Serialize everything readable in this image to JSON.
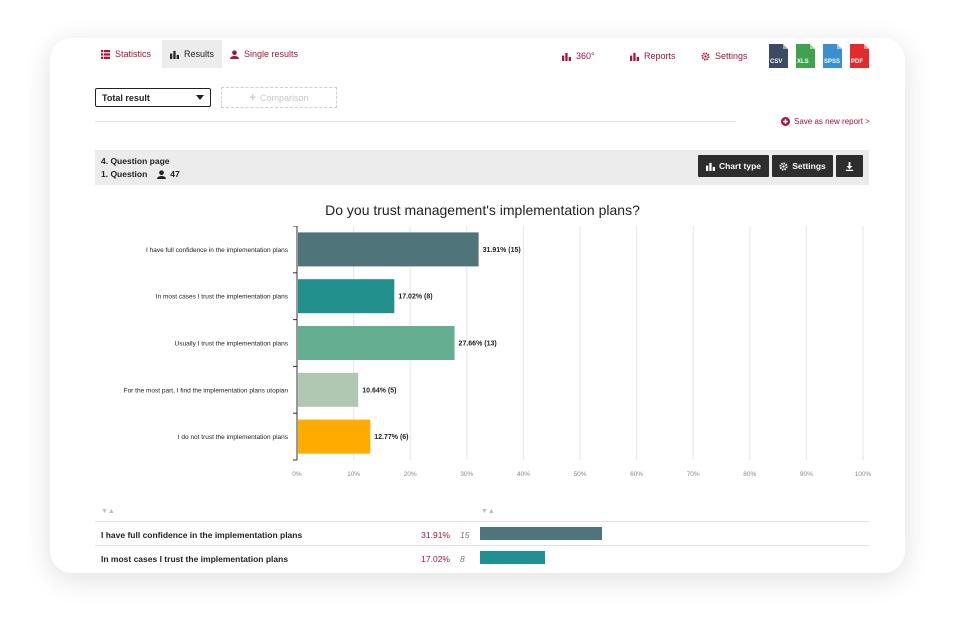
{
  "nav": {
    "tabs": [
      {
        "label": "Statistics",
        "icon": "table-icon"
      },
      {
        "label": "Results",
        "icon": "bar-chart-icon"
      },
      {
        "label": "Single results",
        "icon": "user-icon"
      }
    ],
    "links": [
      {
        "label": "360°",
        "icon": "bar-chart-icon"
      },
      {
        "label": "Reports",
        "icon": "bar-chart-icon"
      },
      {
        "label": "Settings",
        "icon": "gear-icon"
      }
    ],
    "exports": [
      {
        "label": "CSV",
        "color": "#3c4a63"
      },
      {
        "label": "XLS",
        "color": "#3fa34d"
      },
      {
        "label": "SPSS",
        "color": "#3b8fd1"
      },
      {
        "label": "PDF",
        "color": "#e32b2b"
      }
    ]
  },
  "filters": {
    "select_value": "Total result",
    "comparison_label": "Comparison",
    "save_label": "Save as new report >"
  },
  "question": {
    "page_label": "4. Question page",
    "question_label": "1. Question",
    "respondents": "47",
    "chart_type_label": "Chart type",
    "settings_label": "Settings"
  },
  "colors": {
    "accent": "#a3153a",
    "dark_button": "#2d2d2d",
    "bars": [
      "#4f7479",
      "#22918d",
      "#66ae91",
      "#b0c8b1",
      "#ffab00"
    ]
  },
  "chart_data": {
    "type": "bar",
    "orientation": "horizontal",
    "title": "Do you trust management's implementation plans?",
    "categories": [
      "I have full confidence in the implementation plans",
      "In most cases I trust the implementation plans",
      "Usually I trust the implementation plans",
      "For the most part, I find the implementation plans utopian",
      "I do not trust the implementation plans"
    ],
    "values": [
      31.91,
      17.02,
      27.66,
      10.64,
      12.77
    ],
    "labels": [
      "31.91% (15)",
      "17.02% (8)",
      "27.66% (13)",
      "10.64% (5)",
      "12.77% (6)"
    ],
    "x_ticks": [
      "0%",
      "10%",
      "20%",
      "30%",
      "40%",
      "50%",
      "60%",
      "70%",
      "80%",
      "90%",
      "100%"
    ],
    "xlim": [
      0,
      100
    ],
    "grid": true
  },
  "table": {
    "sort_glyph": "▼▲",
    "rows": [
      {
        "label": "I have full confidence in the implementation plans",
        "percent": "31.91%",
        "count": "15",
        "value": 31.91
      },
      {
        "label": "In most cases I trust the implementation plans",
        "percent": "17.02%",
        "count": "8",
        "value": 17.02
      }
    ]
  }
}
